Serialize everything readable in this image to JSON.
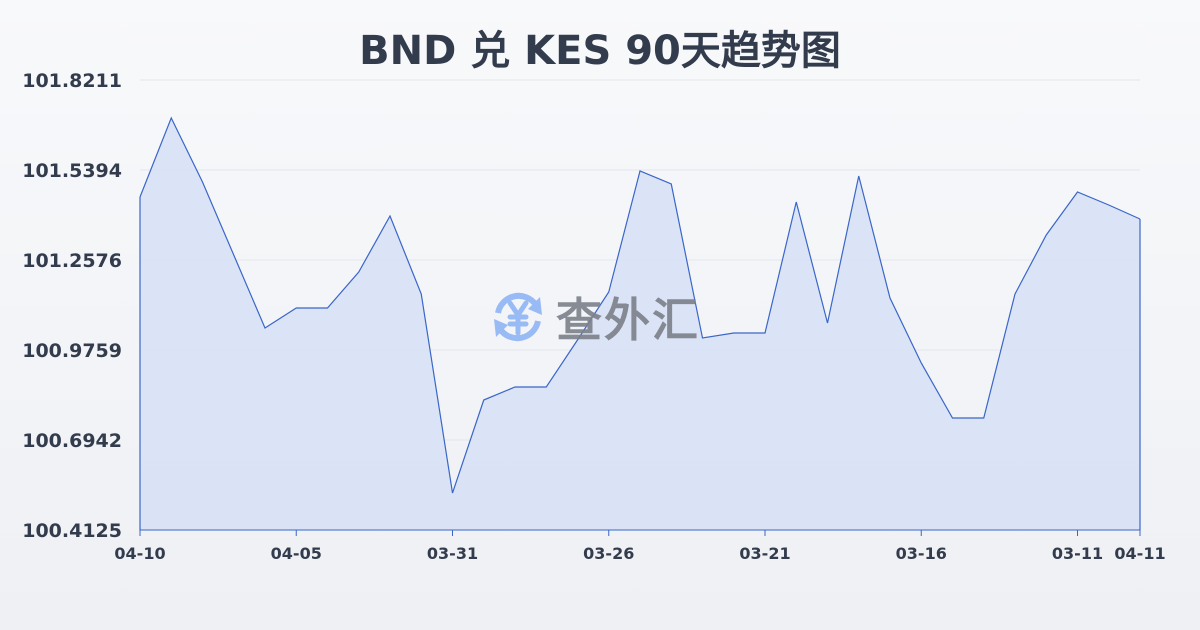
{
  "title": "BND 兑 KES 90天趋势图",
  "watermark": {
    "text": "查外汇",
    "icon": "yen-exchange-icon",
    "icon_color": "#8fb4f5"
  },
  "chart_data": {
    "type": "area",
    "title": "BND 兑 KES 90天趋势图",
    "xlabel": "",
    "ylabel": "",
    "ylim": [
      100.4125,
      101.8211
    ],
    "y_ticks": [
      "101.8211",
      "101.5394",
      "101.2576",
      "100.9759",
      "100.6942",
      "100.4125"
    ],
    "x_ticks": [
      {
        "index": 0,
        "label": "04-10"
      },
      {
        "index": 5,
        "label": "04-05"
      },
      {
        "index": 10,
        "label": "03-31"
      },
      {
        "index": 15,
        "label": "03-26"
      },
      {
        "index": 20,
        "label": "03-21"
      },
      {
        "index": 25,
        "label": "03-16"
      },
      {
        "index": 30,
        "label": "03-11"
      },
      {
        "index": 32,
        "label": "04-11"
      }
    ],
    "values": [
      101.4549,
      101.7022,
      101.5018,
      101.2733,
      101.0448,
      101.1074,
      101.1074,
      101.2201,
      101.3954,
      101.1512,
      100.5283,
      100.8194,
      100.8601,
      100.8601,
      101.0072,
      101.1575,
      101.5363,
      101.4956,
      101.0135,
      101.0292,
      101.0292,
      101.4392,
      101.0605,
      101.5206,
      101.1387,
      100.9353,
      100.7631,
      100.7631,
      101.1512,
      101.3359,
      101.4705,
      101.4298,
      101.386
    ],
    "grid": true,
    "line_color": "#3a66c8",
    "fill_color": "#d6e1f6"
  }
}
